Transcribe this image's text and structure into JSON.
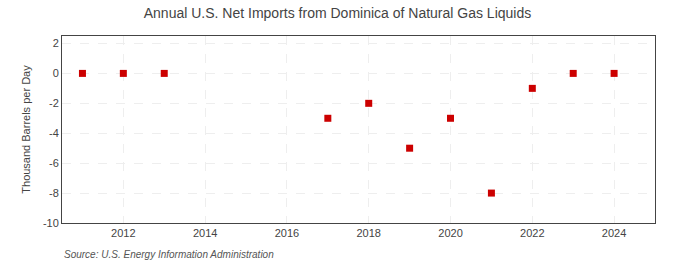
{
  "chart_data": {
    "type": "scatter",
    "title": "Annual U.S. Net Imports from Dominica of Natural Gas Liquids",
    "ylabel": "Thousand Barrels per Day",
    "source": "Source: U.S. Energy Information Administration",
    "x": [
      2011,
      2012,
      2013,
      2017,
      2018,
      2019,
      2020,
      2021,
      2022,
      2023,
      2024
    ],
    "values": [
      0,
      0,
      0,
      -3,
      -2,
      -5,
      -3,
      -8,
      -1,
      0,
      0
    ],
    "color": "#cc0000",
    "marker": "square",
    "xlim": [
      2010.5,
      2025.0
    ],
    "ylim": [
      -10,
      2.5
    ],
    "xticks": [
      2012,
      2014,
      2016,
      2018,
      2020,
      2022,
      2024
    ],
    "yticks": [
      -10,
      -8,
      -6,
      -4,
      -2,
      0,
      2
    ],
    "grid": true
  }
}
